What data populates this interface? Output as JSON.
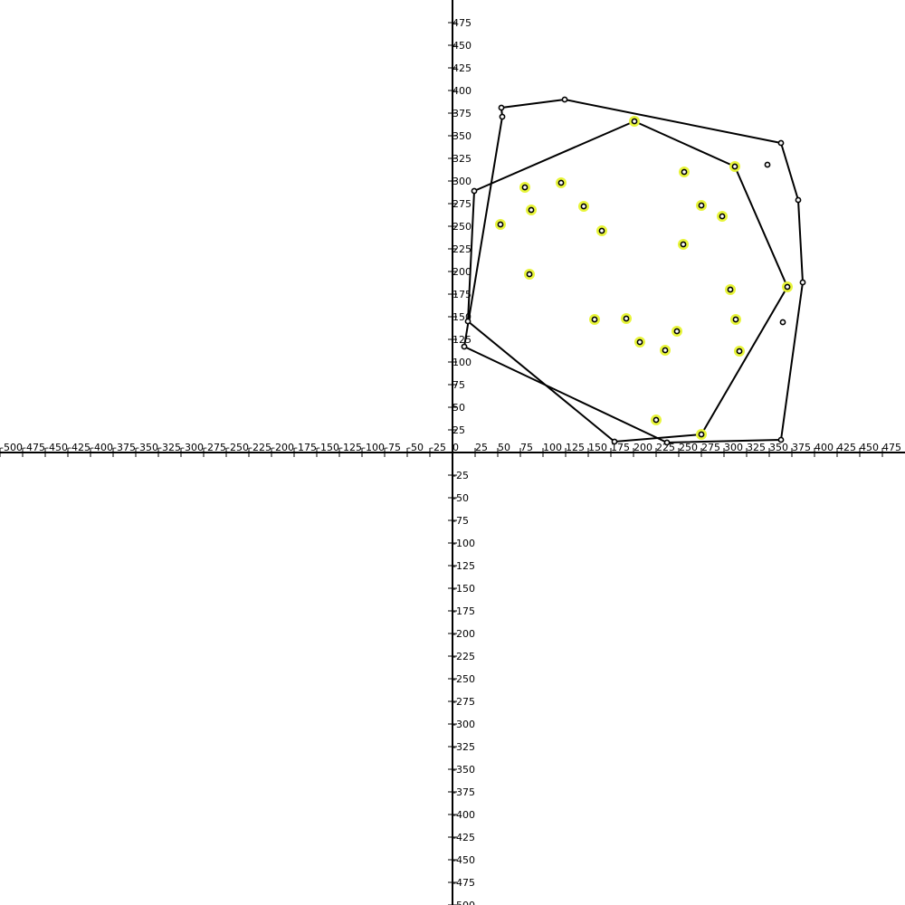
{
  "chart_data": {
    "type": "scatter",
    "xlim": [
      -500,
      500
    ],
    "ylim": [
      -500,
      500
    ],
    "tick_step": 25,
    "colors": {
      "axis": "#000000",
      "hull": "#000000",
      "point_stroke": "#000000",
      "highlight": "#e8f53a"
    },
    "x_tick_labels": [
      "-500",
      "-475",
      "-450",
      "-425",
      "-400",
      "-375",
      "-350",
      "-325",
      "-300",
      "-275",
      "-250",
      "-225",
      "-200",
      "-175",
      "-150",
      "-125",
      "-100",
      "-75",
      "-50",
      "-25",
      "0",
      "25",
      "50",
      "75",
      "100",
      "125",
      "150",
      "175",
      "200",
      "225",
      "250",
      "275",
      "300",
      "325",
      "350",
      "375",
      "400",
      "425",
      "450",
      "475"
    ],
    "y_tick_labels": [
      "475",
      "450",
      "425",
      "400",
      "375",
      "350",
      "325",
      "300",
      "275",
      "250",
      "225",
      "200",
      "175",
      "150",
      "125",
      "100",
      "75",
      "50",
      "25",
      "-25",
      "-50",
      "-75",
      "-100",
      "-125",
      "-150",
      "-175",
      "-200",
      "-225",
      "-250",
      "-275",
      "-300",
      "-325",
      "-350",
      "-375",
      "-400",
      "-425",
      "-450",
      "-475",
      "-500"
    ],
    "polygons": [
      {
        "name": "outer",
        "points": [
          [
            54,
            381
          ],
          [
            124,
            390
          ],
          [
            363,
            342
          ],
          [
            382,
            279
          ],
          [
            387,
            188
          ],
          [
            363,
            14
          ],
          [
            237,
            11
          ],
          [
            13,
            117
          ],
          [
            55,
            371
          ]
        ]
      },
      {
        "name": "inner",
        "points": [
          [
            201,
            366
          ],
          [
            312,
            316
          ],
          [
            370,
            183
          ],
          [
            275,
            20
          ],
          [
            179,
            12
          ],
          [
            17,
            145
          ],
          [
            24,
            289
          ]
        ]
      }
    ],
    "highlighted_points": [
      [
        201,
        366
      ],
      [
        256,
        310
      ],
      [
        312,
        316
      ],
      [
        80,
        293
      ],
      [
        120,
        298
      ],
      [
        87,
        268
      ],
      [
        145,
        272
      ],
      [
        53,
        252
      ],
      [
        275,
        273
      ],
      [
        298,
        261
      ],
      [
        165,
        245
      ],
      [
        255,
        230
      ],
      [
        85,
        197
      ],
      [
        307,
        180
      ],
      [
        370,
        183
      ],
      [
        157,
        147
      ],
      [
        192,
        148
      ],
      [
        313,
        147
      ],
      [
        248,
        134
      ],
      [
        207,
        122
      ],
      [
        235,
        113
      ],
      [
        317,
        112
      ],
      [
        225,
        36
      ],
      [
        275,
        20
      ]
    ],
    "plain_points": [
      [
        54,
        381
      ],
      [
        55,
        371
      ],
      [
        124,
        390
      ],
      [
        363,
        342
      ],
      [
        348,
        318
      ],
      [
        382,
        279
      ],
      [
        387,
        188
      ],
      [
        365,
        144
      ],
      [
        363,
        14
      ],
      [
        237,
        11
      ],
      [
        179,
        12
      ],
      [
        24,
        289
      ],
      [
        17,
        145
      ],
      [
        13,
        117
      ]
    ]
  }
}
